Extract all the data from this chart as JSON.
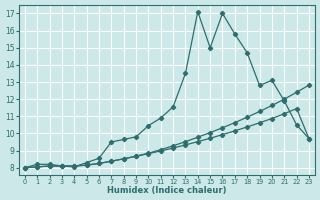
{
  "xlabel": "Humidex (Indice chaleur)",
  "xlim": [
    -0.5,
    23.5
  ],
  "ylim": [
    7.6,
    17.5
  ],
  "xticks": [
    0,
    1,
    2,
    3,
    4,
    5,
    6,
    7,
    8,
    9,
    10,
    11,
    12,
    13,
    14,
    15,
    16,
    17,
    18,
    19,
    20,
    21,
    22,
    23
  ],
  "yticks": [
    8,
    9,
    10,
    11,
    12,
    13,
    14,
    15,
    16,
    17
  ],
  "bg_color": "#cce8e8",
  "grid_color": "#ffffff",
  "line_color": "#2d6e6e",
  "line1_x": [
    0,
    1,
    2,
    3,
    4,
    5,
    6,
    7,
    8,
    9,
    10,
    11,
    12,
    13,
    14,
    15,
    16,
    17,
    18,
    19,
    20,
    21,
    22,
    23
  ],
  "line1_y": [
    8.0,
    8.2,
    8.2,
    8.1,
    8.05,
    8.3,
    8.55,
    9.5,
    9.65,
    9.8,
    10.45,
    10.9,
    11.55,
    13.5,
    17.1,
    15.0,
    17.0,
    15.8,
    14.7,
    12.8,
    13.1,
    11.9,
    10.5,
    9.7
  ],
  "line2_x": [
    0,
    1,
    2,
    3,
    4,
    5,
    6,
    7,
    8,
    9,
    10,
    11,
    12,
    13,
    14,
    15,
    16,
    17,
    18,
    19,
    20,
    21,
    22,
    23
  ],
  "line2_y": [
    8.0,
    8.05,
    8.1,
    8.1,
    8.1,
    8.15,
    8.25,
    8.38,
    8.52,
    8.67,
    8.82,
    8.98,
    9.15,
    9.33,
    9.52,
    9.72,
    9.93,
    10.15,
    10.38,
    10.62,
    10.87,
    11.15,
    11.45,
    9.7
  ],
  "line3_x": [
    0,
    1,
    2,
    3,
    4,
    5,
    6,
    7,
    8,
    9,
    10,
    11,
    12,
    13,
    14,
    15,
    16,
    17,
    18,
    19,
    20,
    21,
    22,
    23
  ],
  "line3_y": [
    8.0,
    8.05,
    8.1,
    8.1,
    8.1,
    8.15,
    8.25,
    8.38,
    8.52,
    8.67,
    8.85,
    9.05,
    9.28,
    9.52,
    9.78,
    10.05,
    10.33,
    10.63,
    10.95,
    11.28,
    11.63,
    12.0,
    12.4,
    12.82
  ]
}
